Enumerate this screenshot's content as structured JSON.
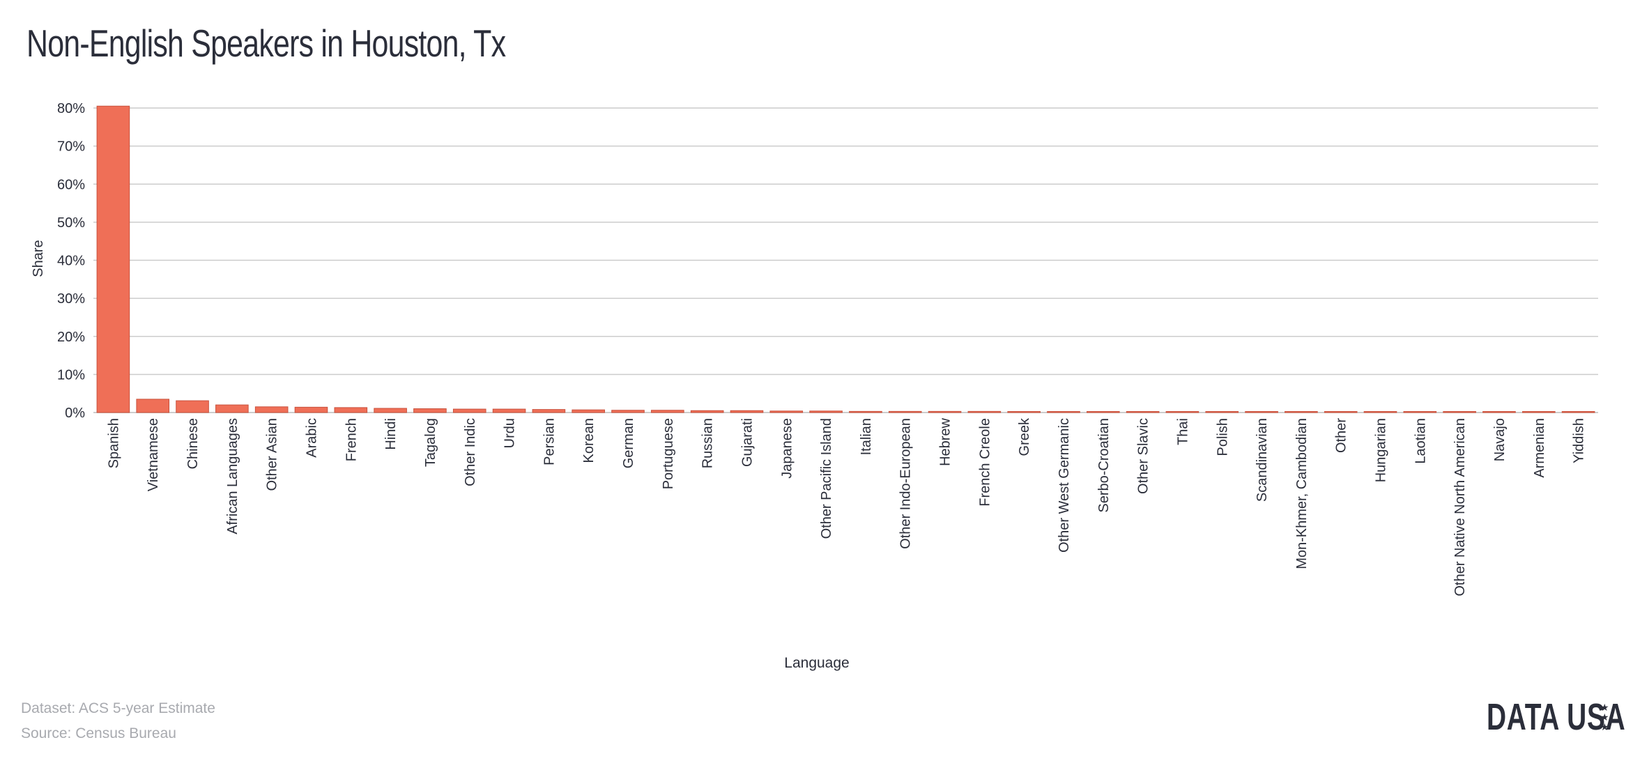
{
  "title": "Non-English Speakers in Houston, Tx",
  "footer": {
    "dataset": "Dataset: ACS 5-year Estimate",
    "source": "Source: Census Bureau"
  },
  "logo": {
    "text": "DATA USA",
    "stars_icon": "stars-icon"
  },
  "colors": {
    "bar": "#ef6f57",
    "bar_stroke": "#c9523d",
    "grid": "#cccccc",
    "text": "#2b2e3a",
    "muted": "#a8aaaf"
  },
  "chart_data": {
    "type": "bar",
    "xlabel": "Language",
    "ylabel": "Share",
    "ylim": [
      0,
      0.8
    ],
    "yticks": [
      "0%",
      "10%",
      "20%",
      "30%",
      "40%",
      "50%",
      "60%",
      "70%",
      "80%"
    ],
    "grid": true,
    "categories": [
      "Spanish",
      "Vietnamese",
      "Chinese",
      "African Languages",
      "Other Asian",
      "Arabic",
      "French",
      "Hindi",
      "Tagalog",
      "Other Indic",
      "Urdu",
      "Persian",
      "Korean",
      "German",
      "Portuguese",
      "Russian",
      "Gujarati",
      "Japanese",
      "Other Pacific Island",
      "Italian",
      "Other Indo-European",
      "Hebrew",
      "French Creole",
      "Greek",
      "Other West Germanic",
      "Serbo-Croatian",
      "Other Slavic",
      "Thai",
      "Polish",
      "Scandinavian",
      "Mon-Khmer, Cambodian",
      "Other",
      "Hungarian",
      "Laotian",
      "Other Native North American",
      "Navajo",
      "Armenian",
      "Yiddish"
    ],
    "values": [
      0.805,
      0.035,
      0.031,
      0.02,
      0.015,
      0.014,
      0.013,
      0.011,
      0.01,
      0.009,
      0.009,
      0.008,
      0.007,
      0.006,
      0.006,
      0.005,
      0.005,
      0.004,
      0.004,
      0.003,
      0.003,
      0.003,
      0.003,
      0.002,
      0.002,
      0.002,
      0.002,
      0.002,
      0.002,
      0.001,
      0.001,
      0.001,
      0.001,
      0.001,
      0.001,
      0.0005,
      0.0005,
      0.0005
    ]
  }
}
